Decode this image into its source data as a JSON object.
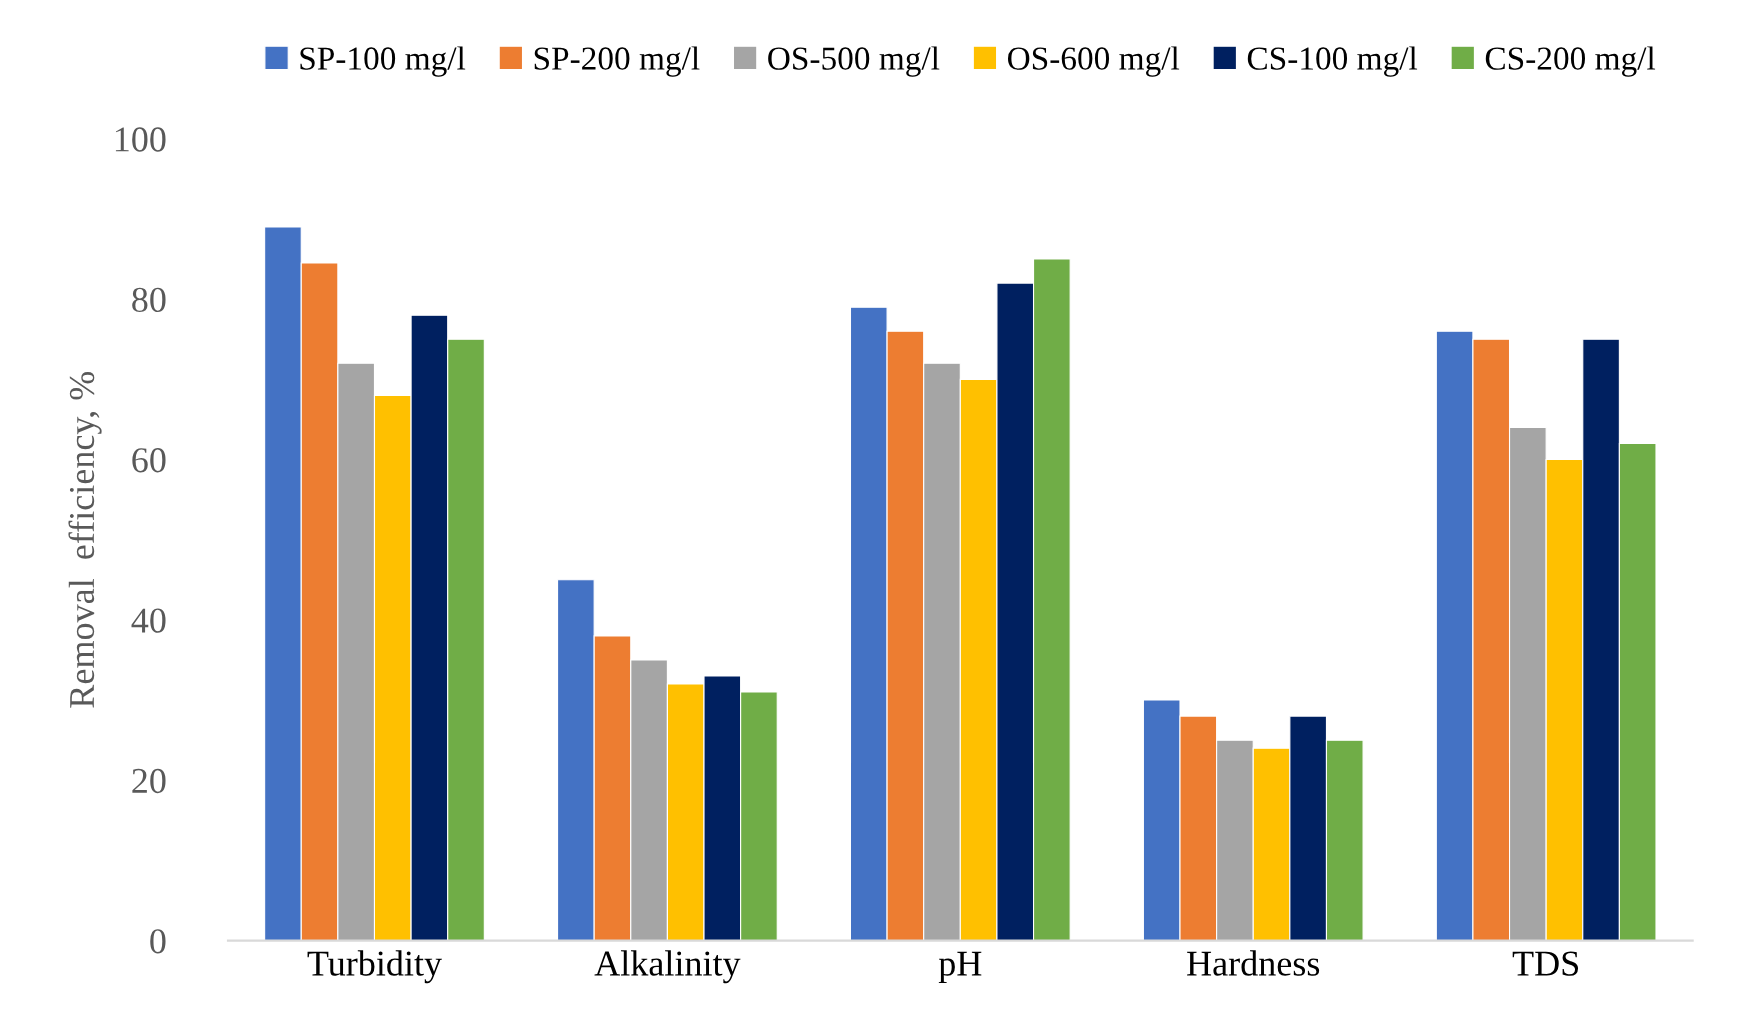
{
  "chart_data": {
    "type": "bar",
    "ylabel": "Removal  efficiency, %",
    "categories": [
      "Turbidity",
      "Alkalinity",
      "pH",
      "Hardness",
      "TDS"
    ],
    "series": [
      {
        "name": "SP-100 mg/l",
        "color": "#4472c4",
        "values": [
          89,
          45,
          79,
          30,
          76
        ]
      },
      {
        "name": "SP-200 mg/l",
        "color": "#ed7d31",
        "values": [
          84.5,
          38,
          76,
          28,
          75
        ]
      },
      {
        "name": "OS-500 mg/l",
        "color": "#a5a5a5",
        "values": [
          72,
          35,
          72,
          25,
          64
        ]
      },
      {
        "name": "OS-600 mg/l",
        "color": "#ffc000",
        "values": [
          68,
          32,
          70,
          24,
          60
        ]
      },
      {
        "name": "CS-100 mg/l",
        "color": "#002060",
        "values": [
          78,
          33,
          82,
          28,
          75
        ]
      },
      {
        "name": "CS-200 mg/l",
        "color": "#70ad47",
        "values": [
          75,
          31,
          85,
          25,
          62
        ]
      }
    ],
    "ylim": [
      0,
      100
    ],
    "yticks": [
      0,
      20,
      40,
      60,
      80,
      100
    ],
    "grid": false,
    "legend": "top"
  }
}
